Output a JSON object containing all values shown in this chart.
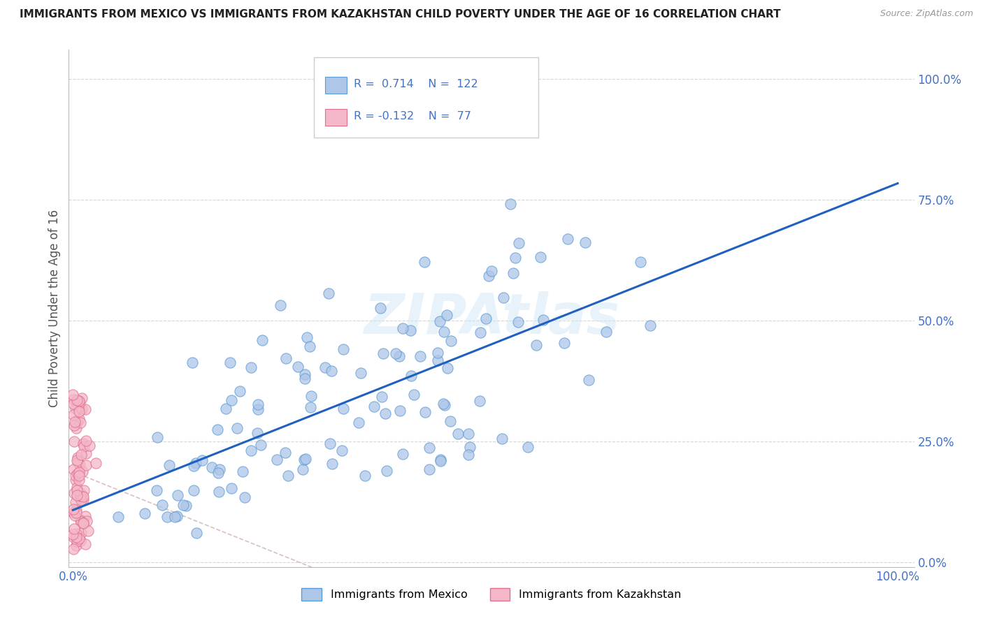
{
  "title": "IMMIGRANTS FROM MEXICO VS IMMIGRANTS FROM KAZAKHSTAN CHILD POVERTY UNDER THE AGE OF 16 CORRELATION CHART",
  "source": "Source: ZipAtlas.com",
  "ylabel": "Child Poverty Under the Age of 16",
  "mexico_color": "#aec6e8",
  "mexico_edge_color": "#5b9bd5",
  "kazakhstan_color": "#f4b8c8",
  "kazakhstan_edge_color": "#e07090",
  "mexico_R": 0.714,
  "mexico_N": 122,
  "kazakhstan_R": -0.132,
  "kazakhstan_N": 77,
  "legend_label_mexico": "Immigrants from Mexico",
  "legend_label_kazakhstan": "Immigrants from Kazakhstan",
  "watermark": "ZIPAtlas",
  "background_color": "#ffffff",
  "title_color": "#222222",
  "axis_label_color": "#555555",
  "tick_color": "#4472c4",
  "ytick_labels": [
    "0.0%",
    "25.0%",
    "50.0%",
    "75.0%",
    "100.0%"
  ],
  "ytick_values": [
    0.0,
    0.25,
    0.5,
    0.75,
    1.0
  ],
  "xtick_labels": [
    "0.0%",
    "100.0%"
  ],
  "xtick_values": [
    0.0,
    1.0
  ],
  "grid_color": "#cccccc",
  "line_color_mexico": "#2060c0",
  "line_color_kazakhstan": "#d0b0b0"
}
